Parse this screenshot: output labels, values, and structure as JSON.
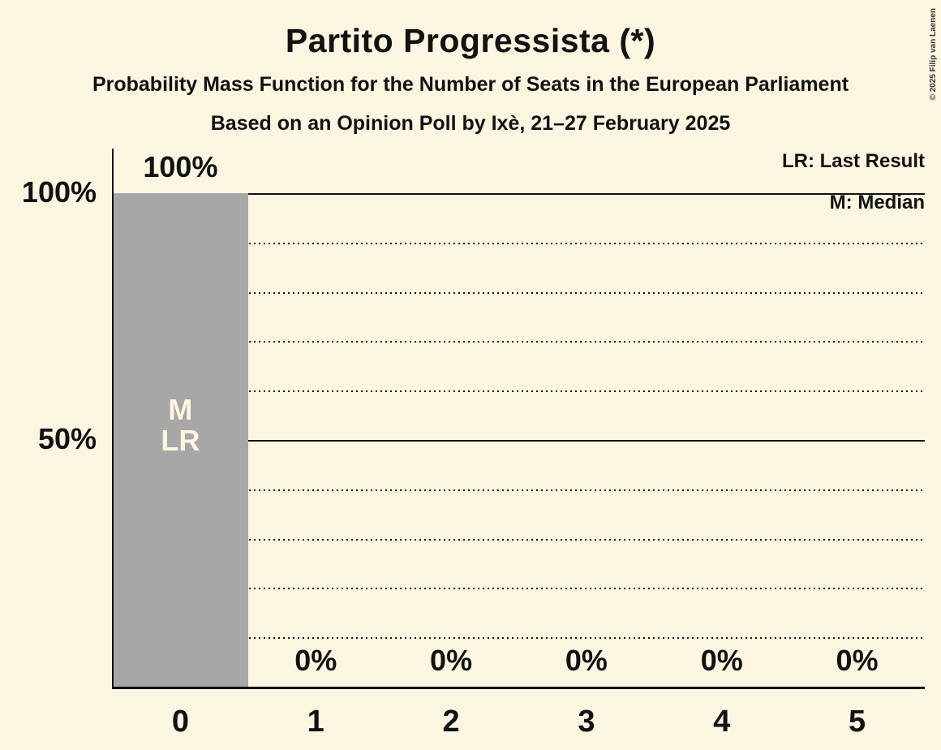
{
  "page": {
    "copyright": "© 2025 Filip van Laenen"
  },
  "chart_data": {
    "type": "bar",
    "title": "Partito Progressista (*)",
    "subtitle": "Probability Mass Function for the Number of Seats in the European Parliament",
    "subtitle2": "Based on an Opinion Poll by Ixè, 21–27 February 2025",
    "legend": [
      {
        "key": "LR",
        "label": "LR: Last Result"
      },
      {
        "key": "M",
        "label": "M: Median"
      }
    ],
    "legend_position": "top-right",
    "xlabel": "",
    "ylabel": "",
    "categories": [
      "0",
      "1",
      "2",
      "3",
      "4",
      "5"
    ],
    "values": [
      100,
      0,
      0,
      0,
      0,
      0
    ],
    "value_labels": [
      "100%",
      "0%",
      "0%",
      "0%",
      "0%",
      "0%"
    ],
    "bar_annotations": [
      [
        "M",
        "LR"
      ],
      [],
      [],
      [],
      [],
      []
    ],
    "median_seats": 0,
    "last_result_seats": 0,
    "ylim": [
      0,
      100
    ],
    "yticks": [
      {
        "value": 100,
        "label": "100%"
      },
      {
        "value": 50,
        "label": "50%"
      }
    ],
    "solid_gridlines": [
      100,
      50
    ],
    "dotted_gridlines": [
      90,
      80,
      70,
      60,
      40,
      30,
      20,
      10
    ],
    "grid": true,
    "colors": {
      "background": "#fbf6df",
      "bar": "#a7a7a7",
      "annotation": "#fbf6df",
      "text": "#121212",
      "grid": "#121212"
    }
  }
}
